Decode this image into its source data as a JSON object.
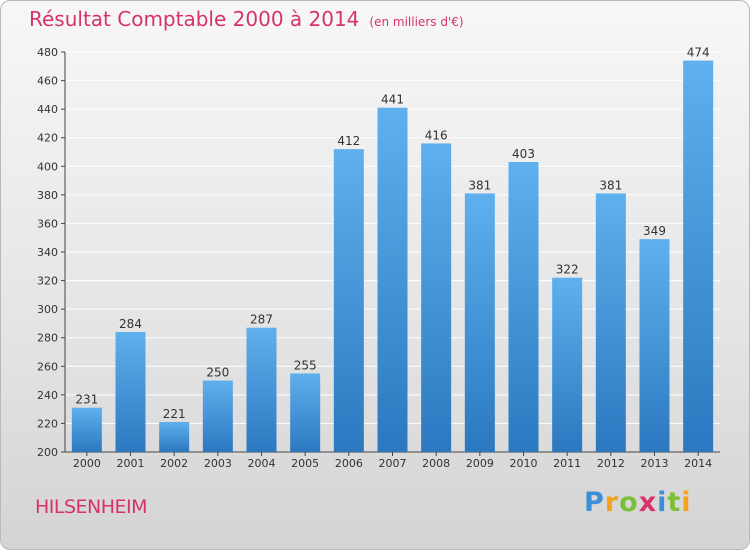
{
  "title": "Résultat Comptable 2000 à 2014",
  "subtitle": "(en milliers d'€)",
  "commune": "HILSENHEIM",
  "logo": {
    "letters": [
      "P",
      "r",
      "o",
      "x",
      "i",
      "t",
      "i"
    ],
    "colors": [
      "#3a8fd6",
      "#f2a31b",
      "#7bbf3b",
      "#d6336b",
      "#3a8fd6",
      "#7bbf3b",
      "#f2a31b"
    ]
  },
  "colors": {
    "accent": "#d6336b",
    "bar": "#4a9ee0"
  },
  "chart_data": {
    "type": "bar",
    "categories": [
      "2000",
      "2001",
      "2002",
      "2003",
      "2004",
      "2005",
      "2006",
      "2007",
      "2008",
      "2009",
      "2010",
      "2011",
      "2012",
      "2013",
      "2014"
    ],
    "values": [
      231,
      284,
      221,
      250,
      287,
      255,
      412,
      441,
      416,
      381,
      403,
      322,
      381,
      349,
      474
    ],
    "ylim": [
      200,
      480
    ],
    "yticks": [
      200,
      220,
      240,
      260,
      280,
      300,
      320,
      340,
      360,
      380,
      400,
      420,
      440,
      460,
      480
    ],
    "grid": true
  }
}
